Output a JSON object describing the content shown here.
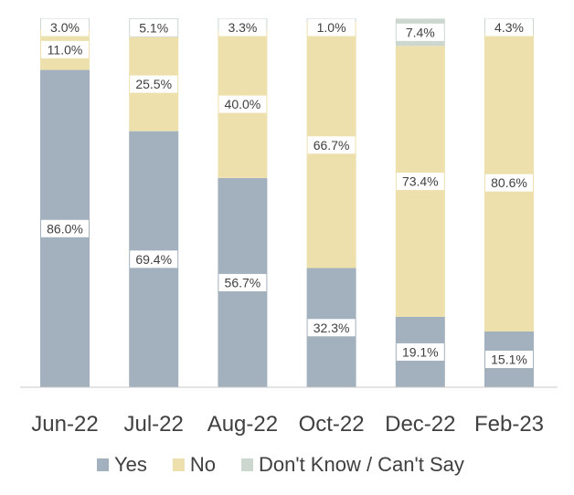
{
  "chart_data": {
    "type": "bar",
    "stacked": true,
    "percent": true,
    "categories": [
      "Jun-22",
      "Jul-22",
      "Aug-22",
      "Oct-22",
      "Dec-22",
      "Feb-23"
    ],
    "series": [
      {
        "name": "Yes",
        "color": "#a3b1be",
        "values": [
          86.0,
          69.4,
          56.7,
          32.3,
          19.1,
          15.1
        ]
      },
      {
        "name": "No",
        "color": "#ede0ad",
        "values": [
          11.0,
          25.5,
          40.0,
          66.7,
          73.4,
          80.6
        ]
      },
      {
        "name": "Don't Know / Can't Say",
        "color": "#ccd8cf",
        "values": [
          3.0,
          5.1,
          3.3,
          1.0,
          7.4,
          4.3
        ]
      }
    ],
    "data_labels": [
      [
        "86.0%",
        "69.4%",
        "56.7%",
        "32.3%",
        "19.1%",
        "15.1%"
      ],
      [
        "11.0%",
        "25.5%",
        "40.0%",
        "66.7%",
        "73.4%",
        "80.6%"
      ],
      [
        "3.0%",
        "5.1%",
        "3.3%",
        "1.0%",
        "7.4%",
        "4.3%"
      ]
    ],
    "ylim": [
      0,
      100
    ],
    "grid": false,
    "legend_position": "bottom"
  }
}
